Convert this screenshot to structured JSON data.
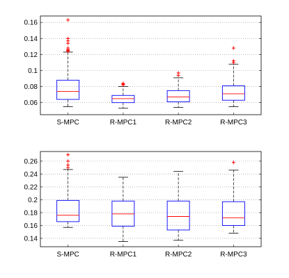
{
  "chart_data": [
    {
      "type": "box",
      "categories": [
        "S-MPC",
        "R-MPC1",
        "R-MPC2",
        "R-MPC3"
      ],
      "ylim": [
        0.045,
        0.168
      ],
      "yticks": [
        "0.06",
        "0.08",
        "0.1",
        "0.12",
        "0.14",
        "0.16"
      ],
      "grid": "y-dotted",
      "boxes": [
        {
          "whisker_low": 0.055,
          "q1": 0.064,
          "median": 0.074,
          "q3": 0.088,
          "whisker_high": 0.123,
          "outliers": [
            0.124,
            0.125,
            0.126,
            0.128,
            0.134,
            0.137,
            0.14,
            0.163
          ]
        },
        {
          "whisker_low": 0.053,
          "q1": 0.06,
          "median": 0.065,
          "q3": 0.069,
          "whisker_high": 0.08,
          "outliers": [
            0.082,
            0.083,
            0.084
          ]
        },
        {
          "whisker_low": 0.054,
          "q1": 0.061,
          "median": 0.067,
          "q3": 0.075,
          "whisker_high": 0.091,
          "outliers": [
            0.094,
            0.097
          ]
        },
        {
          "whisker_low": 0.055,
          "q1": 0.063,
          "median": 0.071,
          "q3": 0.081,
          "whisker_high": 0.108,
          "outliers": [
            0.11,
            0.112,
            0.128
          ]
        }
      ]
    },
    {
      "type": "box",
      "categories": [
        "S-MPC",
        "R-MPC1",
        "R-MPC2",
        "R-MPC3"
      ],
      "ylim": [
        0.127,
        0.275
      ],
      "yticks": [
        "0.14",
        "0.16",
        "0.18",
        "0.2",
        "0.22",
        "0.24",
        "0.26"
      ],
      "grid": "y-dotted",
      "boxes": [
        {
          "whisker_low": 0.157,
          "q1": 0.166,
          "median": 0.176,
          "q3": 0.199,
          "whisker_high": 0.247,
          "outliers": [
            0.25,
            0.254,
            0.26,
            0.27
          ]
        },
        {
          "whisker_low": 0.135,
          "q1": 0.159,
          "median": 0.178,
          "q3": 0.198,
          "whisker_high": 0.235,
          "outliers": []
        },
        {
          "whisker_low": 0.137,
          "q1": 0.153,
          "median": 0.174,
          "q3": 0.198,
          "whisker_high": 0.244,
          "outliers": []
        },
        {
          "whisker_low": 0.148,
          "q1": 0.16,
          "median": 0.172,
          "q3": 0.197,
          "whisker_high": 0.246,
          "outliers": [
            0.258
          ]
        }
      ]
    }
  ],
  "colors": {
    "box": "#0000ff",
    "median": "#ff0000",
    "whisker": "#000000",
    "outlier": "#ff0000",
    "grid": "#8c8c8c"
  }
}
